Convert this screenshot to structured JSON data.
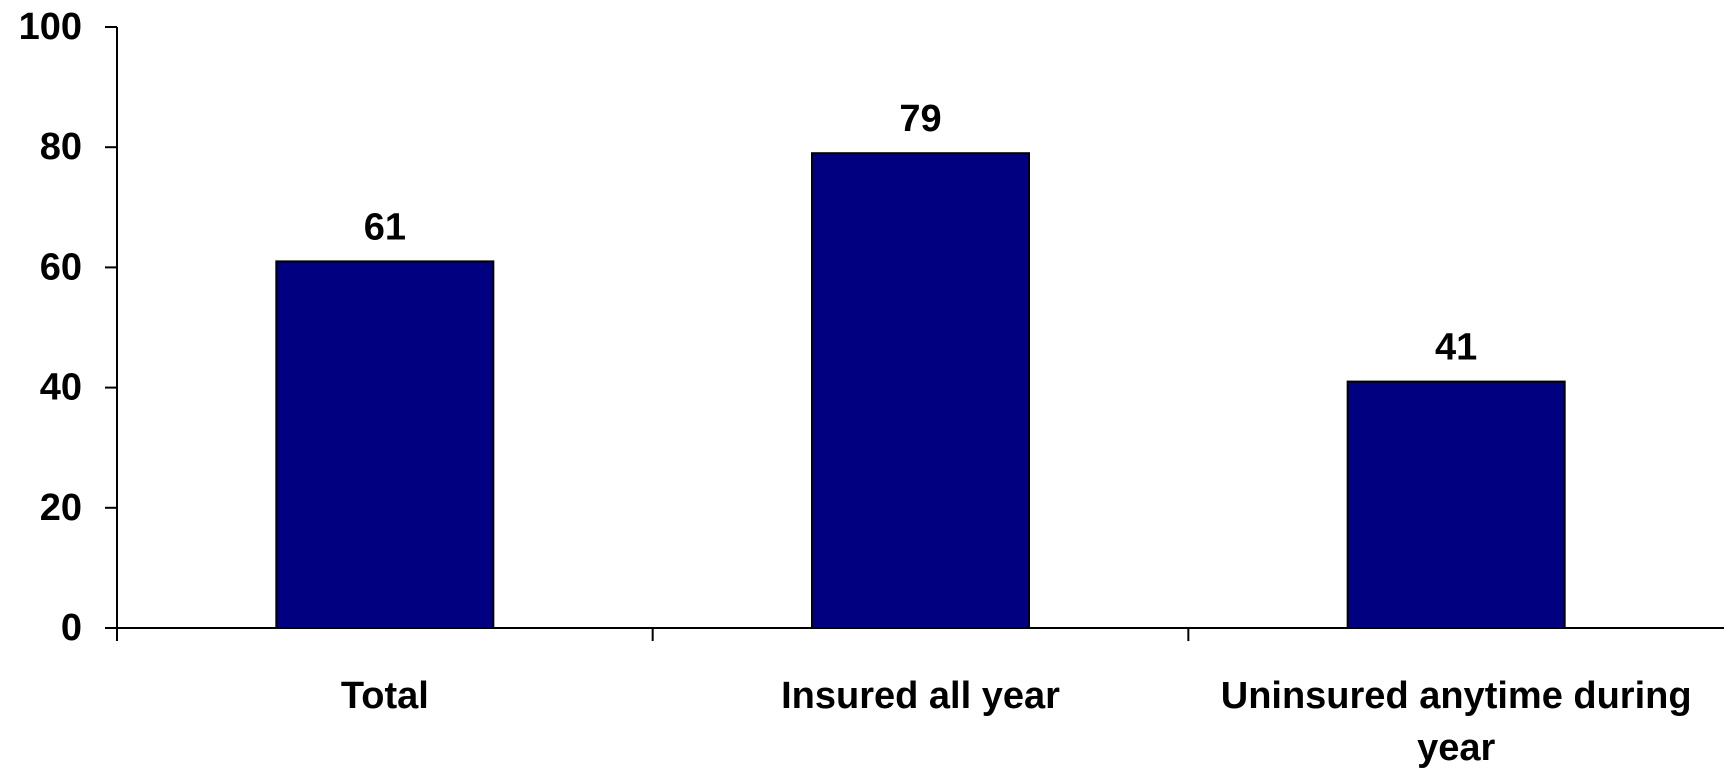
{
  "chart_data": {
    "type": "bar",
    "title": "",
    "xlabel": "",
    "ylabel": "",
    "categories": [
      [
        "Total"
      ],
      [
        "Insured all year"
      ],
      [
        "Uninsured anytime during",
        "year"
      ]
    ],
    "values": [
      61,
      79,
      41
    ],
    "data_labels": [
      "61",
      "79",
      "41"
    ],
    "ylim": [
      0,
      100
    ],
    "yticks": [
      0,
      20,
      40,
      60,
      80,
      100
    ],
    "ytick_labels": [
      "0",
      "20",
      "40",
      "60",
      "80",
      "100"
    ],
    "grid": false,
    "legend": "none",
    "bar_color": "#000080",
    "bar_edge_color": "#000000"
  }
}
